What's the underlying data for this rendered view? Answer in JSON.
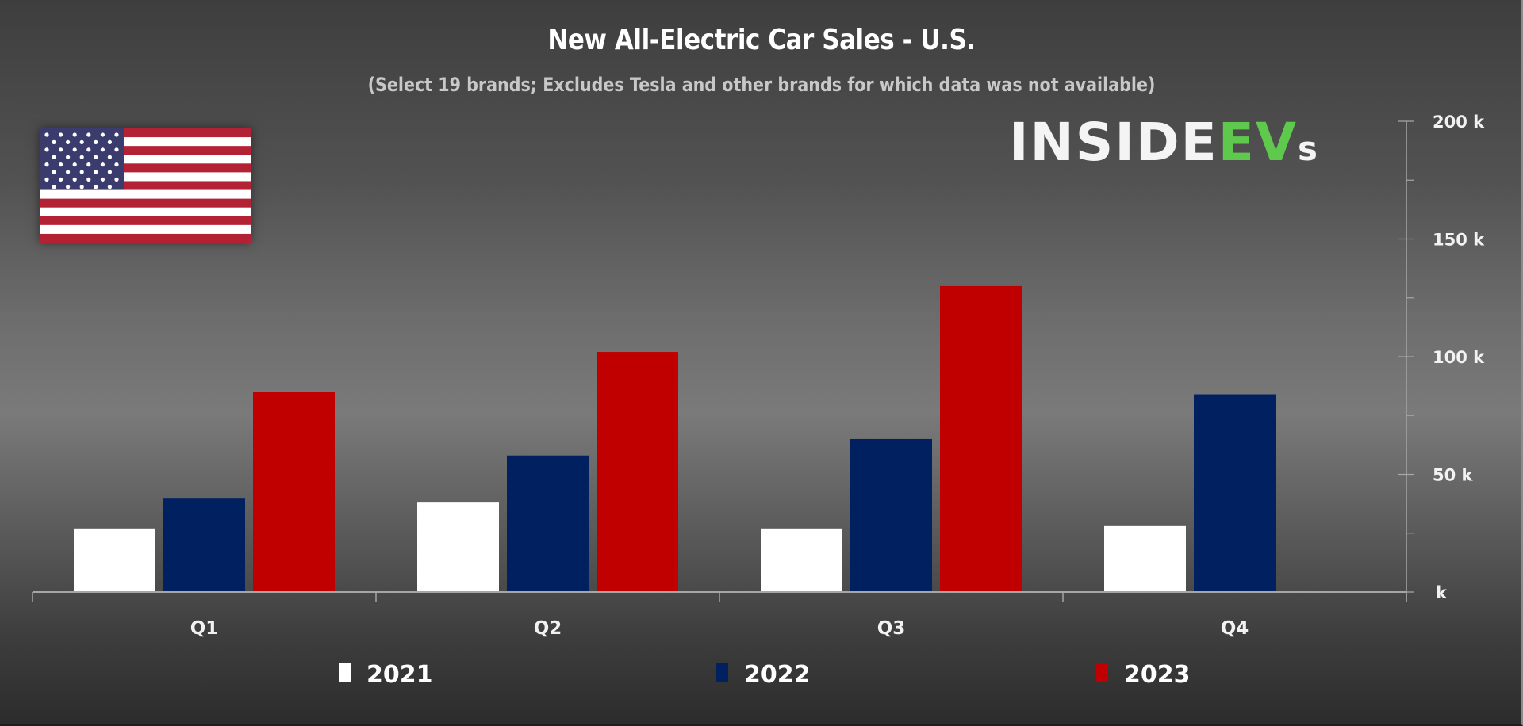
{
  "chart_data": {
    "type": "bar",
    "title": "New All-Electric Car Sales - U.S.",
    "subtitle": "(Select 19 brands; Excludes Tesla and other brands for which data was not available)",
    "xlabel": "",
    "ylabel": "",
    "categories": [
      "Q1",
      "Q2",
      "Q3",
      "Q4"
    ],
    "series": [
      {
        "name": "2021",
        "color": "#ffffff",
        "values": [
          27000,
          38000,
          27000,
          28000
        ]
      },
      {
        "name": "2022",
        "color": "#002060",
        "values": [
          40000,
          58000,
          65000,
          84000
        ]
      },
      {
        "name": "2023",
        "color": "#c00000",
        "values": [
          85000,
          102000,
          130000,
          null
        ]
      }
    ],
    "ylim": [
      0,
      200000
    ],
    "y_ticks": [
      0,
      50000,
      100000,
      150000,
      200000
    ],
    "y_tick_labels": [
      "k",
      "50 k",
      "100 k",
      "150 k",
      "200 k"
    ],
    "y_minor_step": 25000,
    "y_axis_side": "right",
    "grid": false,
    "legend_position": "bottom"
  },
  "branding": {
    "logo_white": "INSIDE",
    "logo_green": "EV",
    "logo_suffix": "s",
    "logo_green_color": "#5ec94c",
    "flag": "us-flag"
  }
}
